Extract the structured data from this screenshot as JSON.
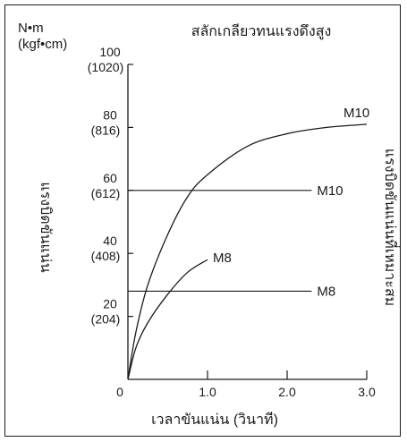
{
  "chart_data": {
    "type": "line",
    "title": "สลักเกลียวทนแรงดึงสูง",
    "unit_top": "N•m",
    "unit_bottom": "(kgf•cm)",
    "ylabel": "แรงบิดขันแน่น",
    "ylabel_right": "แรงบิดขันแน่นที่เหมาะสม",
    "xlabel": "เวลาขันแน่น (วินาที)",
    "xlim": [
      0,
      3.0
    ],
    "ylim": [
      0,
      100
    ],
    "x_ticks": [
      {
        "value": 0,
        "label": "0"
      },
      {
        "value": 1.0,
        "label": "1.0"
      },
      {
        "value": 2.0,
        "label": "2.0"
      },
      {
        "value": 3.0,
        "label": "3.0"
      }
    ],
    "y_ticks": [
      {
        "value": 100,
        "label": "100",
        "sub": "(1020)"
      },
      {
        "value": 80,
        "label": "80",
        "sub": "(816)"
      },
      {
        "value": 60,
        "label": "60",
        "sub": "(612)"
      },
      {
        "value": 40,
        "label": "40",
        "sub": "(408)"
      },
      {
        "value": 20,
        "label": "20",
        "sub": "(204)"
      }
    ],
    "series": [
      {
        "name": "M10",
        "kind": "curve",
        "points": [
          [
            0,
            0
          ],
          [
            0.1,
            15
          ],
          [
            0.25,
            30
          ],
          [
            0.5,
            46
          ],
          [
            0.75,
            58
          ],
          [
            1.0,
            65
          ],
          [
            1.5,
            74
          ],
          [
            2.0,
            78
          ],
          [
            2.5,
            80
          ],
          [
            3.0,
            81
          ]
        ]
      },
      {
        "name": "M8",
        "kind": "curve",
        "points": [
          [
            0,
            0
          ],
          [
            0.1,
            10
          ],
          [
            0.25,
            18
          ],
          [
            0.5,
            27
          ],
          [
            0.75,
            34
          ],
          [
            1.0,
            38
          ]
        ]
      },
      {
        "name": "M10",
        "kind": "hline",
        "y": 60,
        "x_range": [
          0,
          2.6
        ]
      },
      {
        "name": "M8",
        "kind": "hline",
        "y": 28,
        "x_range": [
          0,
          2.6
        ]
      }
    ]
  }
}
